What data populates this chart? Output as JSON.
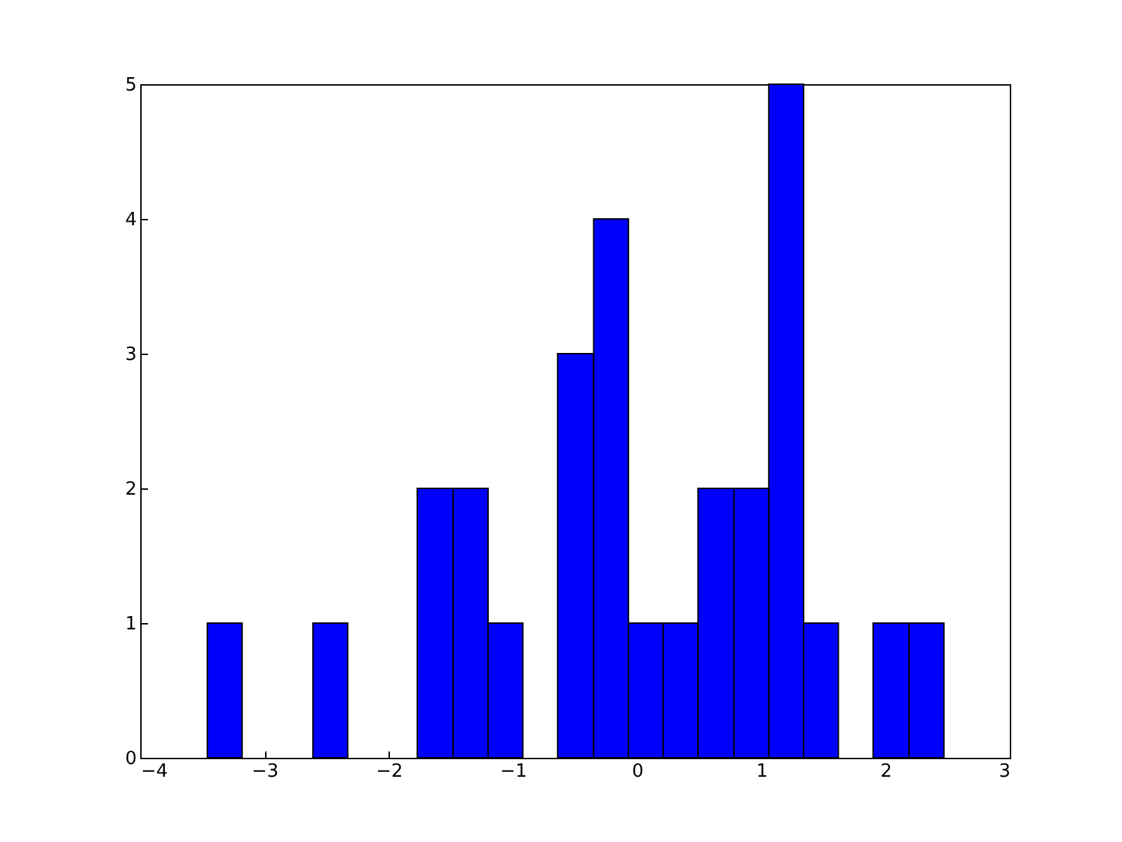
{
  "chart_data": {
    "type": "histogram",
    "bins": [
      -3.46,
      -3.18,
      -2.61,
      -2.33,
      -1.77,
      -1.48,
      -1.2,
      -0.92,
      -0.64,
      -0.35,
      -0.07,
      0.21,
      0.49,
      0.78,
      1.06,
      1.34,
      1.62,
      1.9,
      2.19,
      2.47
    ],
    "values": [
      1,
      0,
      1,
      0,
      2,
      2,
      1,
      0,
      3,
      4,
      1,
      1,
      2,
      2,
      5,
      1,
      0,
      1,
      1
    ],
    "color": "#0000ff",
    "xlim": [
      -4,
      3
    ],
    "xticks": [
      {
        "value": -4,
        "label": "−4"
      },
      {
        "value": -3,
        "label": "−3"
      },
      {
        "value": -2,
        "label": "−2"
      },
      {
        "value": -1,
        "label": "−1"
      },
      0,
      1,
      2,
      3
    ],
    "ylim": [
      0,
      5
    ],
    "yticks": [
      0,
      1,
      2,
      3,
      4,
      5
    ],
    "grid": false
  }
}
